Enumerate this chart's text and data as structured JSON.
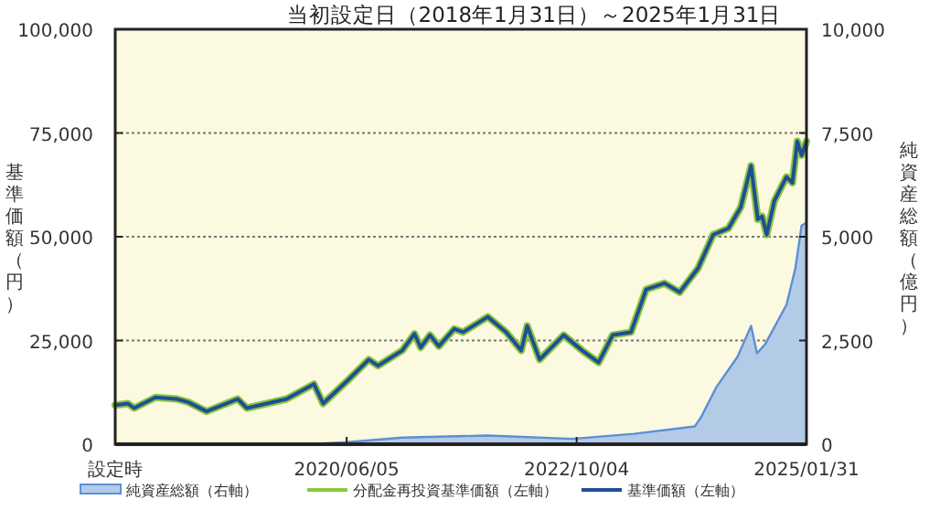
{
  "chart_data": {
    "type": "line",
    "title": "当初設定日（2018年1月31日）～2025年1月31日",
    "ylabel": "基準価額（円）",
    "y2label": "純資産総額（億円）",
    "xlim": [
      "2018-01-31",
      "2025-01-31"
    ],
    "xticks": [
      {
        "value": "2018-01-31",
        "label": "設定時"
      },
      {
        "value": "2020-06-05",
        "label": "2020/06/05"
      },
      {
        "value": "2022-10-04",
        "label": "2022/10/04"
      },
      {
        "value": "2025-01-31",
        "label": "2025/01/31"
      }
    ],
    "ylim": [
      0,
      100000
    ],
    "yticks": [
      0,
      {
        "value": 25000,
        "label": "25,000"
      },
      {
        "value": 50000,
        "label": "50,000"
      },
      {
        "value": 75000,
        "label": "75,000"
      },
      {
        "value": 100000,
        "label": "100,000"
      }
    ],
    "y2lim": [
      0,
      10000
    ],
    "y2ticks": [
      0,
      {
        "value": 2500,
        "label": "2,500"
      },
      {
        "value": 5000,
        "label": "5,000"
      },
      {
        "value": 7500,
        "label": "7,500"
      },
      {
        "value": 10000,
        "label": "10,000"
      }
    ],
    "grid": "y",
    "legend": "bottom",
    "series": [
      {
        "name": "純資産総額（右軸）",
        "type": "area",
        "axis": "y2",
        "color": "#5b8fd6",
        "x": [
          "2018-01-31",
          "2019-06-02",
          "2020-01-15",
          "2020-06-08",
          "2020-12-28",
          "2021-11-09",
          "2022-09-18",
          "2023-05-04",
          "2023-12-15",
          "2024-01-07",
          "2024-03-04",
          "2024-05-21",
          "2024-07-10",
          "2024-08-01",
          "2024-08-31",
          "2024-11-18",
          "2024-12-21",
          "2025-01-13",
          "2025-01-31"
        ],
        "values": [
          0,
          0,
          0,
          50,
          160,
          210,
          130,
          250,
          430,
          650,
          1380,
          2110,
          2850,
          2190,
          2410,
          3360,
          4240,
          5270,
          5340
        ]
      },
      {
        "name": "分配金再投資基準価額（左軸）",
        "color": "#8cc63f",
        "x": [
          "2018-01-31",
          "2018-03-19",
          "2018-04-11",
          "2018-06-29",
          "2018-09-16",
          "2018-10-29",
          "2019-01-04",
          "2019-04-29",
          "2019-06-02",
          "2019-10-27",
          "2020-02-05",
          "2020-03-10",
          "2020-06-08",
          "2020-08-26",
          "2020-09-29",
          "2020-12-28",
          "2021-02-11",
          "2021-03-06",
          "2021-04-09",
          "2021-05-12",
          "2021-07-08",
          "2021-08-10",
          "2021-11-09",
          "2022-01-16",
          "2022-03-13",
          "2022-04-04",
          "2022-05-20",
          "2022-08-17",
          "2022-10-24",
          "2022-12-24",
          "2023-02-14",
          "2023-04-23",
          "2023-06-18",
          "2023-08-25",
          "2023-10-20",
          "2023-12-27",
          "2024-02-21",
          "2024-04-17",
          "2024-06-02",
          "2024-07-10",
          "2024-08-04",
          "2024-08-20",
          "2024-09-06",
          "2024-10-04",
          "2024-11-18",
          "2024-12-10",
          "2024-12-28",
          "2025-01-13",
          "2025-01-31"
        ],
        "values": [
          9400,
          9800,
          8700,
          11300,
          10900,
          10100,
          7900,
          10900,
          8700,
          10900,
          14500,
          9800,
          15300,
          20400,
          18900,
          22600,
          26600,
          23300,
          26300,
          23600,
          27800,
          27000,
          30700,
          27000,
          22600,
          28500,
          20400,
          26300,
          22600,
          19700,
          26300,
          27000,
          37300,
          38800,
          36600,
          42400,
          50500,
          52000,
          57100,
          67100,
          54200,
          54900,
          50500,
          58600,
          64400,
          63000,
          73000,
          69600,
          73000
        ]
      },
      {
        "name": "基準価額（左軸）",
        "color": "#1f4e96",
        "x": [
          "2018-01-31",
          "2018-03-19",
          "2018-04-11",
          "2018-06-29",
          "2018-09-16",
          "2018-10-29",
          "2019-01-04",
          "2019-04-29",
          "2019-06-02",
          "2019-10-27",
          "2020-02-05",
          "2020-03-10",
          "2020-06-08",
          "2020-08-26",
          "2020-09-29",
          "2020-12-28",
          "2021-02-11",
          "2021-03-06",
          "2021-04-09",
          "2021-05-12",
          "2021-07-08",
          "2021-08-10",
          "2021-11-09",
          "2022-01-16",
          "2022-03-13",
          "2022-04-04",
          "2022-05-20",
          "2022-08-17",
          "2022-10-24",
          "2022-12-24",
          "2023-02-14",
          "2023-04-23",
          "2023-06-18",
          "2023-08-25",
          "2023-10-20",
          "2023-12-27",
          "2024-02-21",
          "2024-04-17",
          "2024-06-02",
          "2024-07-10",
          "2024-08-04",
          "2024-08-20",
          "2024-09-06",
          "2024-10-04",
          "2024-11-18",
          "2024-12-10",
          "2024-12-28",
          "2025-01-13",
          "2025-01-31"
        ],
        "values": [
          9400,
          9800,
          8700,
          11300,
          10900,
          10100,
          7900,
          10900,
          8700,
          10900,
          14500,
          9800,
          15300,
          20400,
          18900,
          22600,
          26600,
          23300,
          26300,
          23600,
          27800,
          27000,
          30700,
          27000,
          22600,
          28500,
          20400,
          26300,
          22600,
          19700,
          26300,
          27000,
          37300,
          38800,
          36600,
          42400,
          50500,
          52000,
          57100,
          67100,
          54200,
          54900,
          50500,
          58600,
          64400,
          63000,
          73000,
          69600,
          73000
        ]
      }
    ]
  }
}
